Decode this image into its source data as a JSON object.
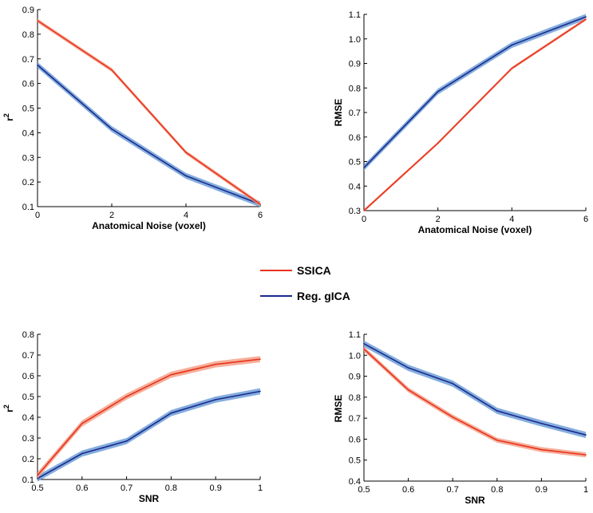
{
  "chart_data": [
    {
      "type": "line",
      "panel": "top-left",
      "xlabel": "Anatomical Noise (voxel)",
      "ylabel": "r",
      "ylabel_superscript": "2",
      "x": [
        0,
        2,
        4,
        6
      ],
      "xlim": [
        0,
        6
      ],
      "ylim": [
        0.1,
        0.9
      ],
      "xticks": [
        0,
        2,
        4,
        6
      ],
      "xtick_labels": [
        "0",
        "2",
        "4",
        "6"
      ],
      "yticks": [
        0.1,
        0.2,
        0.3,
        0.4,
        0.5,
        0.6,
        0.7,
        0.8,
        0.9
      ],
      "ytick_labels": [
        "0.1",
        "0.2",
        "0.3",
        "0.4",
        "0.5",
        "0.6",
        "0.7",
        "0.8",
        "0.9"
      ],
      "series": [
        {
          "name": "SSICA",
          "values": [
            0.855,
            0.655,
            0.32,
            0.11
          ],
          "band": 0.008
        },
        {
          "name": "Reg. gICA",
          "values": [
            0.675,
            0.415,
            0.225,
            0.11
          ],
          "band": 0.012
        }
      ]
    },
    {
      "type": "line",
      "panel": "top-right",
      "xlabel": "Anatomical Noise (voxel)",
      "ylabel": "RMSE",
      "x": [
        0,
        2,
        4,
        6
      ],
      "xlim": [
        0,
        6
      ],
      "ylim": [
        0.3,
        1.1
      ],
      "xticks": [
        0,
        2,
        4,
        6
      ],
      "xtick_labels": [
        "0",
        "2",
        "4",
        "6"
      ],
      "yticks": [
        0.3,
        0.4,
        0.5,
        0.6,
        0.7,
        0.8,
        0.9,
        1.0,
        1.1
      ],
      "ytick_labels": [
        "0.3",
        "0.4",
        "0.5",
        "0.6",
        "0.7",
        "0.8",
        "0.9",
        "1.0",
        "1.1"
      ],
      "series": [
        {
          "name": "SSICA",
          "values": [
            0.3,
            0.575,
            0.88,
            1.08
          ],
          "band": 0.006
        },
        {
          "name": "Reg. gICA",
          "values": [
            0.475,
            0.785,
            0.975,
            1.09
          ],
          "band": 0.012
        }
      ]
    },
    {
      "type": "line",
      "panel": "bottom-left",
      "xlabel": "SNR",
      "ylabel": "r",
      "ylabel_superscript": "2",
      "x": [
        0.5,
        0.6,
        0.7,
        0.8,
        0.9,
        1.0
      ],
      "xlim": [
        0.5,
        1.0
      ],
      "ylim": [
        0.1,
        0.8
      ],
      "xticks": [
        0.5,
        0.6,
        0.7,
        0.8,
        0.9,
        1.0
      ],
      "xtick_labels": [
        "0.5",
        "0.6",
        "0.7",
        "0.8",
        "0.9",
        "1"
      ],
      "yticks": [
        0.1,
        0.2,
        0.3,
        0.4,
        0.5,
        0.6,
        0.7,
        0.8
      ],
      "ytick_labels": [
        "0.1",
        "0.2",
        "0.3",
        "0.4",
        "0.5",
        "0.6",
        "0.7",
        "0.8"
      ],
      "series": [
        {
          "name": "SSICA",
          "values": [
            0.12,
            0.37,
            0.5,
            0.605,
            0.655,
            0.68
          ],
          "band": 0.015
        },
        {
          "name": "Reg. gICA",
          "values": [
            0.105,
            0.225,
            0.285,
            0.42,
            0.485,
            0.525
          ],
          "band": 0.015
        }
      ]
    },
    {
      "type": "line",
      "panel": "bottom-right",
      "xlabel": "SNR",
      "ylabel": "RMSE",
      "x": [
        0.5,
        0.6,
        0.7,
        0.8,
        0.9,
        1.0
      ],
      "xlim": [
        0.5,
        1.0
      ],
      "ylim": [
        0.4,
        1.1
      ],
      "xticks": [
        0.5,
        0.6,
        0.7,
        0.8,
        0.9,
        1.0
      ],
      "xtick_labels": [
        "0.5",
        "0.6",
        "0.7",
        "0.8",
        "0.9",
        "1"
      ],
      "yticks": [
        0.4,
        0.5,
        0.6,
        0.7,
        0.8,
        0.9,
        1.0,
        1.1
      ],
      "ytick_labels": [
        "0.4",
        "0.5",
        "0.6",
        "0.7",
        "0.8",
        "0.9",
        "1.0",
        "1.1"
      ],
      "series": [
        {
          "name": "SSICA",
          "values": [
            1.03,
            0.835,
            0.705,
            0.595,
            0.55,
            0.525
          ],
          "band": 0.012
        },
        {
          "name": "Reg. gICA",
          "values": [
            1.055,
            0.94,
            0.865,
            0.735,
            0.675,
            0.62
          ],
          "band": 0.015
        }
      ]
    }
  ],
  "legend": {
    "items": [
      {
        "name": "SSICA",
        "color": "#e8321e"
      },
      {
        "name": "Reg. gICA",
        "color": "#1a2a8c"
      }
    ],
    "placement": "center"
  },
  "colors": {
    "SSICA": {
      "line": "#e8321e",
      "band": "#f3a28a"
    },
    "Reg. gICA": {
      "line": "#1a2a8c",
      "band": "#6f9fd8"
    }
  }
}
